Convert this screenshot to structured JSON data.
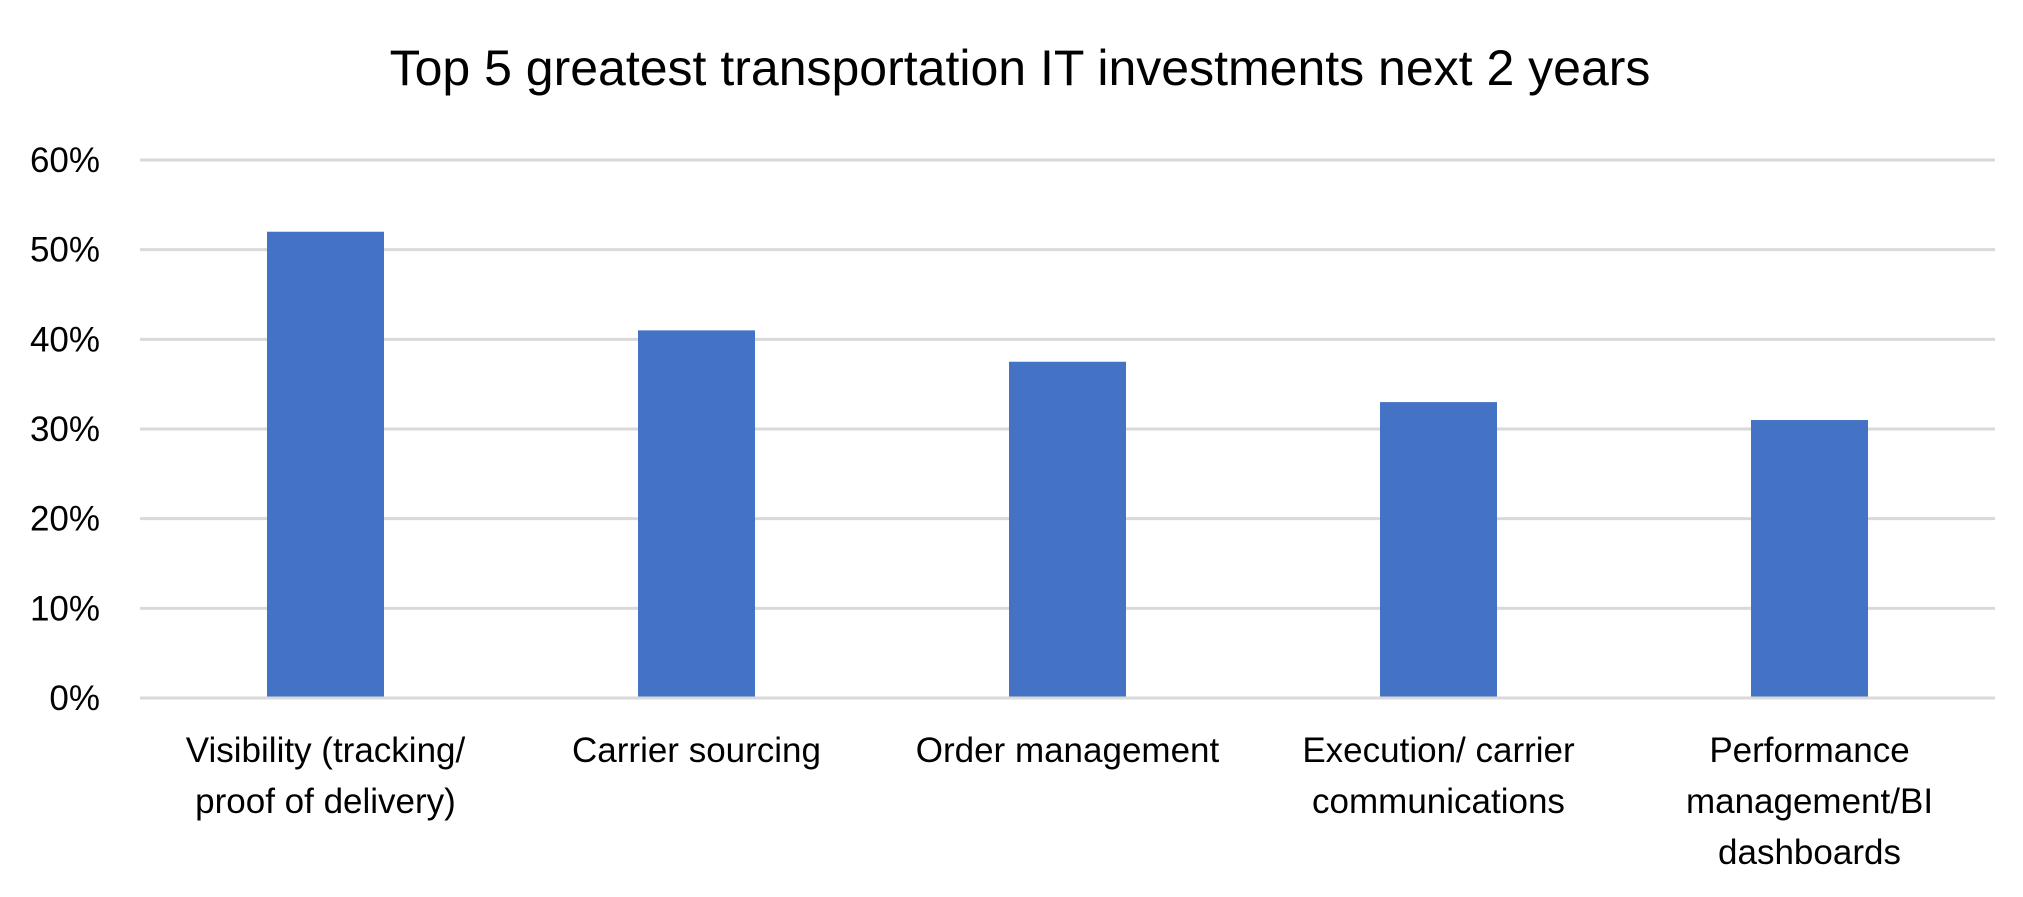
{
  "chart_data": {
    "type": "bar",
    "title": "Top 5 greatest transportation IT investments next 2 years",
    "xlabel": "",
    "ylabel": "",
    "categories": [
      [
        "Visibility (tracking/",
        "proof of delivery)"
      ],
      [
        "Carrier sourcing"
      ],
      [
        "Order management"
      ],
      [
        "Execution/ carrier",
        "communications"
      ],
      [
        "Performance",
        "management/BI",
        "dashboards"
      ]
    ],
    "values": [
      0.52,
      0.41,
      0.375,
      0.33,
      0.31
    ],
    "ylim": [
      0,
      0.6
    ],
    "yticks": [
      {
        "value": 0.0,
        "label": "0%"
      },
      {
        "value": 0.1,
        "label": "10%"
      },
      {
        "value": 0.2,
        "label": "20%"
      },
      {
        "value": 0.3,
        "label": "30%"
      },
      {
        "value": 0.4,
        "label": "40%"
      },
      {
        "value": 0.5,
        "label": "50%"
      },
      {
        "value": 0.6,
        "label": "60%"
      }
    ],
    "grid": true,
    "legend": "none",
    "bar_color": "#4472C4"
  }
}
